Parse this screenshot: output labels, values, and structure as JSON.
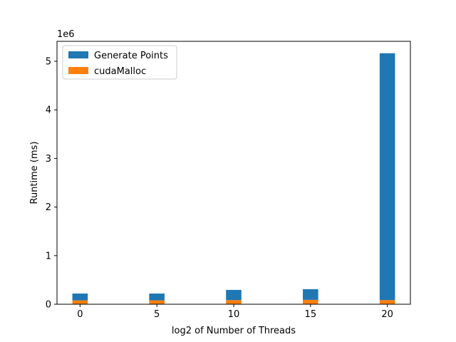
{
  "chart_data": {
    "type": "bar",
    "stacked": true,
    "x": [
      0,
      5,
      10,
      15,
      20
    ],
    "series": [
      {
        "name": "cudaMalloc",
        "color": "#ff7f0e",
        "values": [
          80000,
          80000,
          85000,
          90000,
          85000
        ]
      },
      {
        "name": "Generate Points",
        "color": "#1f77b4",
        "values": [
          140000,
          140000,
          210000,
          220000,
          5080000
        ]
      }
    ],
    "xlabel": "log2 of Number of Threads",
    "ylabel": "Runtime (ms)",
    "y_offset_label": "1e6",
    "xlim": [
      -1.5,
      21.5
    ],
    "ylim": [
      0,
      5410000
    ],
    "xticks": [
      0,
      5,
      10,
      15,
      20
    ],
    "xtick_labels": [
      "0",
      "5",
      "10",
      "15",
      "20"
    ],
    "yticks": [
      0,
      1000000,
      2000000,
      3000000,
      4000000,
      5000000
    ],
    "ytick_labels": [
      "0",
      "1",
      "2",
      "3",
      "4",
      "5"
    ],
    "bar_width": 1.0,
    "legend": {
      "position": "upper-left",
      "entries": [
        {
          "label": "Generate Points",
          "color": "#1f77b4"
        },
        {
          "label": "cudaMalloc",
          "color": "#ff7f0e"
        }
      ]
    },
    "grid": false
  }
}
